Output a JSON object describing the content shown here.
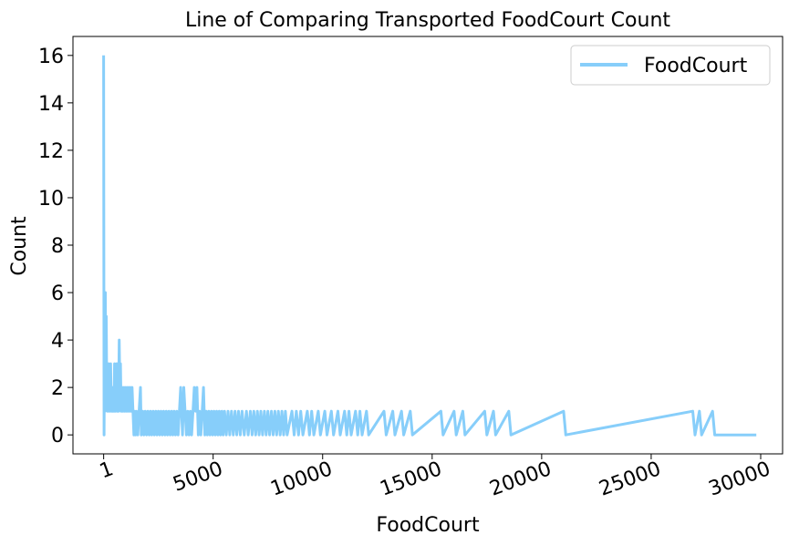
{
  "chart_data": {
    "type": "line",
    "title": "Line of Comparing Transported FoodCourt Count",
    "xlabel": "FoodCourt",
    "ylabel": "Count",
    "xlim": [
      -1400,
      31000
    ],
    "ylim": [
      -0.8,
      16.8
    ],
    "x_ticks": [
      1,
      5000,
      10000,
      15000,
      20000,
      25000,
      30000
    ],
    "x_tick_labels": [
      "1",
      "5000",
      "10000",
      "15000",
      "20000",
      "25000",
      "30000"
    ],
    "y_ticks": [
      0,
      2,
      4,
      6,
      8,
      10,
      12,
      14,
      16
    ],
    "y_tick_labels": [
      "0",
      "2",
      "4",
      "6",
      "8",
      "10",
      "12",
      "14",
      "16"
    ],
    "legend_position": "top-right",
    "grid": false,
    "series": [
      {
        "name": "FoodCourt",
        "color": "#87CEFA",
        "points": [
          [
            1,
            16
          ],
          [
            20,
            0
          ],
          [
            40,
            4
          ],
          [
            60,
            1
          ],
          [
            80,
            6
          ],
          [
            100,
            2
          ],
          [
            120,
            5
          ],
          [
            140,
            2
          ],
          [
            160,
            3
          ],
          [
            180,
            1
          ],
          [
            200,
            2
          ],
          [
            230,
            3
          ],
          [
            260,
            1
          ],
          [
            290,
            2
          ],
          [
            320,
            3
          ],
          [
            350,
            1
          ],
          [
            380,
            2
          ],
          [
            410,
            1
          ],
          [
            440,
            2
          ],
          [
            470,
            1
          ],
          [
            500,
            3
          ],
          [
            530,
            1
          ],
          [
            560,
            2
          ],
          [
            590,
            3
          ],
          [
            620,
            1
          ],
          [
            650,
            3
          ],
          [
            680,
            1
          ],
          [
            710,
            4
          ],
          [
            740,
            2
          ],
          [
            770,
            3
          ],
          [
            800,
            1
          ],
          [
            830,
            2
          ],
          [
            860,
            1
          ],
          [
            900,
            2
          ],
          [
            940,
            1
          ],
          [
            980,
            2
          ],
          [
            1020,
            1
          ],
          [
            1060,
            2
          ],
          [
            1100,
            1
          ],
          [
            1140,
            2
          ],
          [
            1180,
            1
          ],
          [
            1220,
            2
          ],
          [
            1260,
            1
          ],
          [
            1300,
            2
          ],
          [
            1340,
            1
          ],
          [
            1380,
            0
          ],
          [
            1420,
            1
          ],
          [
            1460,
            0
          ],
          [
            1500,
            1
          ],
          [
            1560,
            0
          ],
          [
            1620,
            1
          ],
          [
            1680,
            2
          ],
          [
            1720,
            0
          ],
          [
            1780,
            1
          ],
          [
            1840,
            0
          ],
          [
            1900,
            1
          ],
          [
            1960,
            0
          ],
          [
            2020,
            1
          ],
          [
            2080,
            0
          ],
          [
            2140,
            1
          ],
          [
            2200,
            0
          ],
          [
            2260,
            1
          ],
          [
            2320,
            0
          ],
          [
            2380,
            1
          ],
          [
            2440,
            0
          ],
          [
            2500,
            1
          ],
          [
            2560,
            0
          ],
          [
            2620,
            1
          ],
          [
            2680,
            0
          ],
          [
            2740,
            1
          ],
          [
            2800,
            0
          ],
          [
            2860,
            1
          ],
          [
            2920,
            0
          ],
          [
            2980,
            1
          ],
          [
            3040,
            0
          ],
          [
            3100,
            1
          ],
          [
            3160,
            0
          ],
          [
            3220,
            1
          ],
          [
            3280,
            0
          ],
          [
            3340,
            1
          ],
          [
            3400,
            0
          ],
          [
            3460,
            1
          ],
          [
            3520,
            2
          ],
          [
            3600,
            0
          ],
          [
            3660,
            2
          ],
          [
            3720,
            1
          ],
          [
            3780,
            0
          ],
          [
            3840,
            1
          ],
          [
            3900,
            0
          ],
          [
            3960,
            1
          ],
          [
            4020,
            0
          ],
          [
            4080,
            1
          ],
          [
            4140,
            2
          ],
          [
            4200,
            1
          ],
          [
            4260,
            2
          ],
          [
            4320,
            0
          ],
          [
            4380,
            1
          ],
          [
            4440,
            0
          ],
          [
            4500,
            1
          ],
          [
            4560,
            2
          ],
          [
            4620,
            0
          ],
          [
            4680,
            1
          ],
          [
            4740,
            0
          ],
          [
            4800,
            1
          ],
          [
            4860,
            0
          ],
          [
            4920,
            1
          ],
          [
            4980,
            0
          ],
          [
            5040,
            1
          ],
          [
            5100,
            0
          ],
          [
            5160,
            1
          ],
          [
            5220,
            0
          ],
          [
            5280,
            1
          ],
          [
            5340,
            0
          ],
          [
            5400,
            1
          ],
          [
            5460,
            0
          ],
          [
            5520,
            1
          ],
          [
            5600,
            0
          ],
          [
            5680,
            1
          ],
          [
            5760,
            0
          ],
          [
            5840,
            1
          ],
          [
            5920,
            0
          ],
          [
            6000,
            1
          ],
          [
            6080,
            0
          ],
          [
            6160,
            1
          ],
          [
            6240,
            0
          ],
          [
            6320,
            1
          ],
          [
            6420,
            0
          ],
          [
            6520,
            1
          ],
          [
            6600,
            0
          ],
          [
            6700,
            1
          ],
          [
            6780,
            0
          ],
          [
            6860,
            1
          ],
          [
            6940,
            0
          ],
          [
            7020,
            1
          ],
          [
            7100,
            0
          ],
          [
            7180,
            1
          ],
          [
            7260,
            0
          ],
          [
            7340,
            1
          ],
          [
            7420,
            0
          ],
          [
            7500,
            1
          ],
          [
            7580,
            0
          ],
          [
            7660,
            1
          ],
          [
            7740,
            0
          ],
          [
            7820,
            1
          ],
          [
            7900,
            0
          ],
          [
            7980,
            1
          ],
          [
            8060,
            0
          ],
          [
            8140,
            1
          ],
          [
            8220,
            0
          ],
          [
            8300,
            1
          ],
          [
            8380,
            0
          ],
          [
            8600,
            1
          ],
          [
            8700,
            0
          ],
          [
            8800,
            1
          ],
          [
            8900,
            0
          ],
          [
            9000,
            1
          ],
          [
            9100,
            0
          ],
          [
            9300,
            1
          ],
          [
            9400,
            0
          ],
          [
            9500,
            1
          ],
          [
            9600,
            0
          ],
          [
            9800,
            1
          ],
          [
            9900,
            0
          ],
          [
            10100,
            1
          ],
          [
            10200,
            0
          ],
          [
            10400,
            1
          ],
          [
            10500,
            0
          ],
          [
            10700,
            1
          ],
          [
            10800,
            0
          ],
          [
            11000,
            1
          ],
          [
            11100,
            0
          ],
          [
            11200,
            1
          ],
          [
            11300,
            0
          ],
          [
            11500,
            1
          ],
          [
            11600,
            0
          ],
          [
            11700,
            1
          ],
          [
            11800,
            0
          ],
          [
            12000,
            1
          ],
          [
            12100,
            0
          ],
          [
            12800,
            1
          ],
          [
            12900,
            0
          ],
          [
            13200,
            1
          ],
          [
            13300,
            0
          ],
          [
            13600,
            1
          ],
          [
            13700,
            0
          ],
          [
            14000,
            1
          ],
          [
            14100,
            0
          ],
          [
            15400,
            1
          ],
          [
            15500,
            0
          ],
          [
            16000,
            1
          ],
          [
            16100,
            0
          ],
          [
            16400,
            1
          ],
          [
            16500,
            0
          ],
          [
            17400,
            1
          ],
          [
            17500,
            0
          ],
          [
            17800,
            1
          ],
          [
            17900,
            0
          ],
          [
            18500,
            1
          ],
          [
            18600,
            0
          ],
          [
            21000,
            1
          ],
          [
            21100,
            0
          ],
          [
            26900,
            1
          ],
          [
            27000,
            0
          ],
          [
            27200,
            1
          ],
          [
            27300,
            0
          ],
          [
            27800,
            1
          ],
          [
            27900,
            0
          ],
          [
            29800,
            0
          ]
        ]
      }
    ]
  }
}
